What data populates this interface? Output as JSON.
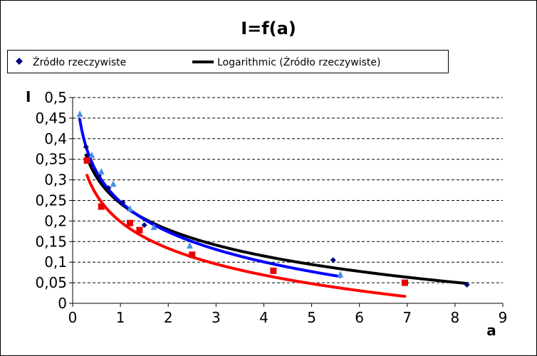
{
  "chart_data": {
    "type": "scatter",
    "title": "I=f(a)",
    "xlabel": "a",
    "ylabel": "I",
    "xlim": [
      0,
      9
    ],
    "ylim": [
      0,
      0.5
    ],
    "x_ticks": [
      "0",
      "1",
      "2",
      "3",
      "4",
      "5",
      "6",
      "7",
      "8",
      "9"
    ],
    "y_ticks": [
      "0",
      "0,05",
      "0,1",
      "0,15",
      "0,2",
      "0,25",
      "0,3",
      "0,35",
      "0,4",
      "0,45",
      "0,5"
    ],
    "grid": "horizontal-dashed",
    "legend_position": "top",
    "legend": [
      {
        "label": "Źródło rzeczywiste",
        "marker": "diamond",
        "color": "#000080"
      },
      {
        "label": "Logarithmic (Źródło rzeczywiste)",
        "marker": "line",
        "color": "#000000"
      }
    ],
    "series": [
      {
        "marker": "diamond",
        "color": "#000080",
        "points": [
          [
            0.28,
            0.38
          ],
          [
            0.55,
            0.31
          ],
          [
            0.75,
            0.28
          ],
          [
            1.05,
            0.245
          ],
          [
            1.5,
            0.19
          ],
          [
            5.45,
            0.105
          ],
          [
            8.25,
            0.045
          ]
        ]
      },
      {
        "marker": "triangle",
        "color": "#4a90e2",
        "points": [
          [
            0.15,
            0.46
          ],
          [
            0.4,
            0.36
          ],
          [
            0.6,
            0.32
          ],
          [
            0.85,
            0.29
          ],
          [
            1.2,
            0.23
          ],
          [
            1.7,
            0.185
          ],
          [
            2.45,
            0.14
          ],
          [
            5.6,
            0.07
          ]
        ]
      },
      {
        "marker": "square",
        "color": "#e60000",
        "points": [
          [
            0.3,
            0.347
          ],
          [
            0.6,
            0.235
          ],
          [
            1.2,
            0.195
          ],
          [
            1.4,
            0.178
          ],
          [
            2.5,
            0.118
          ],
          [
            4.2,
            0.079
          ],
          [
            6.95,
            0.05
          ]
        ]
      }
    ],
    "trendlines": [
      {
        "name": "Logarithmic (Źródło rzeczywiste)",
        "color": "#000000",
        "x_range": [
          0.28,
          8.25
        ],
        "a": 0.2429,
        "b": -0.09226
      },
      {
        "color": "#0000ff",
        "x_range": [
          0.15,
          5.6
        ],
        "a": 0.2465,
        "b": -0.10527
      },
      {
        "color": "#ff0000",
        "x_range": [
          0.3,
          6.95
        ],
        "a": 0.1984,
        "b": -0.09363
      }
    ]
  }
}
